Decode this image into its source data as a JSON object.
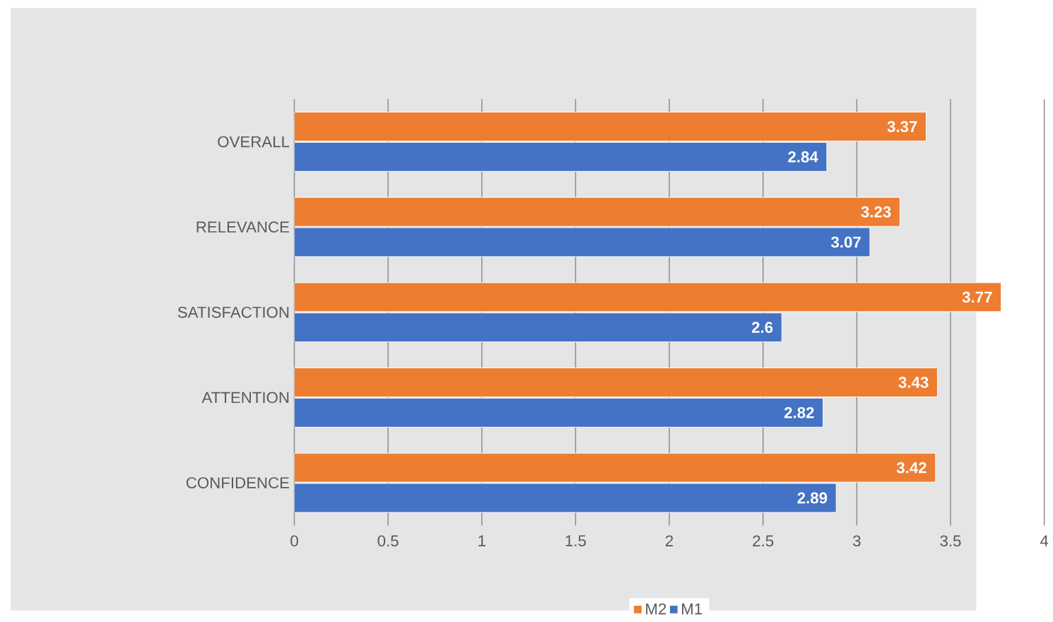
{
  "chart_data": {
    "type": "bar",
    "orientation": "horizontal",
    "categories": [
      "OVERALL",
      "RELEVANCE",
      "SATISFACTION",
      "ATTENTION",
      "CONFIDENCE"
    ],
    "series": [
      {
        "name": "M2",
        "color": "#ed7d31",
        "values": [
          3.37,
          3.23,
          3.77,
          3.43,
          3.42
        ]
      },
      {
        "name": "M1",
        "color": "#4472c4",
        "values": [
          2.84,
          3.07,
          2.6,
          2.82,
          2.89
        ]
      }
    ],
    "xlim": [
      0,
      4
    ],
    "xticks": [
      0,
      0.5,
      1,
      1.5,
      2,
      2.5,
      3,
      3.5,
      4
    ],
    "grid": "x",
    "legend": "bottom",
    "data_labels": true
  }
}
